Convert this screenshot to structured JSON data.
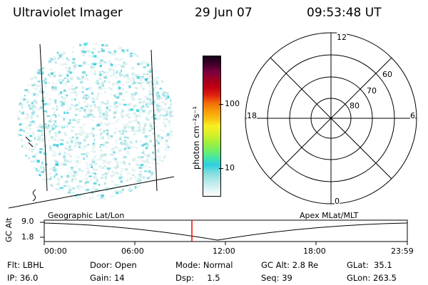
{
  "header": {
    "title": "Ultraviolet Imager",
    "date": "29 Jun 07",
    "time": "09:53:48 UT"
  },
  "colorbar": {
    "unit_label": "photon cm⁻²s⁻¹",
    "ticks": [
      "100",
      "10"
    ],
    "colors": [
      "#ffffff",
      "#d9f2f2",
      "#b0e8e8",
      "#7fdcdc",
      "#2ecfe0",
      "#48e8a0",
      "#78f060",
      "#a8f038",
      "#d8f028",
      "#f8f020",
      "#f8c010",
      "#f89a08",
      "#f06a08",
      "#e02010",
      "#c00010",
      "#a00020",
      "#7a0040",
      "#40002a",
      "#180018"
    ]
  },
  "polar": {
    "hour_labels": {
      "top": "12",
      "bottom": "0",
      "left": "18",
      "right": "6"
    },
    "lat_labels": [
      "60",
      "70",
      "80"
    ]
  },
  "timeline": {
    "left_label": "Geographic Lat/Lon",
    "right_label": "Apex MLat/MLT",
    "axis_title": "GC Alt",
    "y_ticks": [
      "9.0",
      "1.8"
    ],
    "x_ticks": [
      "00:00",
      "06:00",
      "12:00",
      "18:00",
      "23:59"
    ],
    "marker_color": "#ff0000"
  },
  "footer": {
    "flt": "Flt: LBHL",
    "door": "Door: Open",
    "mode": "Mode: Normal",
    "gcalt": "GC Alt: 2.8 Re",
    "glat": "GLat:  35.1",
    "ip": "IP: 36.0",
    "gain": "Gain: 14",
    "dsp": "Dsp:     1.5",
    "seq": "Seq: 39",
    "glon": "GLon: 263.5"
  }
}
